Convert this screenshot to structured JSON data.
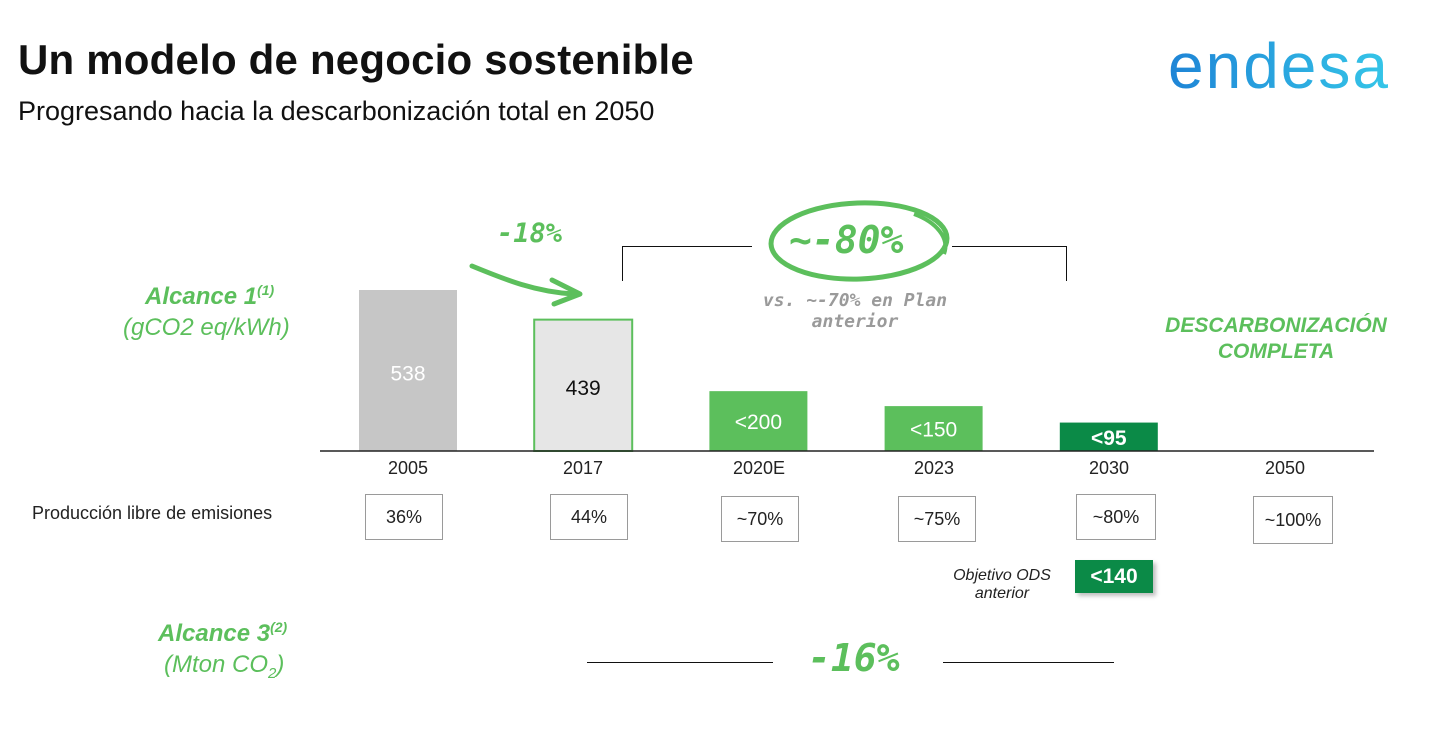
{
  "header": {
    "title": "Un modelo de negocio sostenible",
    "subtitle": "Progresando hacia la descarbonización total en 2050",
    "logo_text": "endesa"
  },
  "scope1": {
    "label": "Alcance 1",
    "sup": "(1)",
    "unit": "(gCO2 eq/kWh)"
  },
  "scope3": {
    "label": "Alcance 3",
    "sup": "(2)",
    "unit_prefix": "(Mton CO",
    "unit_sub": "2",
    "unit_suffix": ")",
    "change": "-16%"
  },
  "annotations": {
    "change_2017": "-18%",
    "change_target": "~-80%",
    "vs_plan_line1": "vs. ~-70% en Plan",
    "vs_plan_line2": "anterior",
    "full_decarb_line1": "DESCARBONIZACIÓN",
    "full_decarb_line2": "COMPLETA",
    "ods_line1": "Objetivo ODS",
    "ods_line2": "anterior",
    "ods_value": "<140"
  },
  "emission_free": {
    "label": "Producción libre de emisiones",
    "values": [
      "36%",
      "44%",
      "~70%",
      "~75%",
      "~80%",
      "~100%"
    ]
  },
  "colors": {
    "bar_2005": "#c6c6c6",
    "bar_2017": "#e6e6e6",
    "bar_2017_border": "#5cbf5c",
    "bar_light_green": "#5cbf5c",
    "bar_dark_green": "#0b8a47",
    "accent_green": "#5cbf5c",
    "logo_blue": "#1e84d6",
    "logo_cyan": "#35c6e8"
  },
  "chart_data": {
    "type": "bar",
    "title": "",
    "ylabel": "(gCO2 eq/kWh)",
    "categories": [
      "2005",
      "2017",
      "2020E",
      "2023",
      "2030",
      "2050"
    ],
    "values": [
      538,
      439,
      200,
      150,
      95,
      0
    ],
    "labels": [
      "538",
      "439",
      "<200",
      "<150",
      "<95",
      ""
    ],
    "ylim": [
      0,
      538
    ],
    "grid": false
  }
}
